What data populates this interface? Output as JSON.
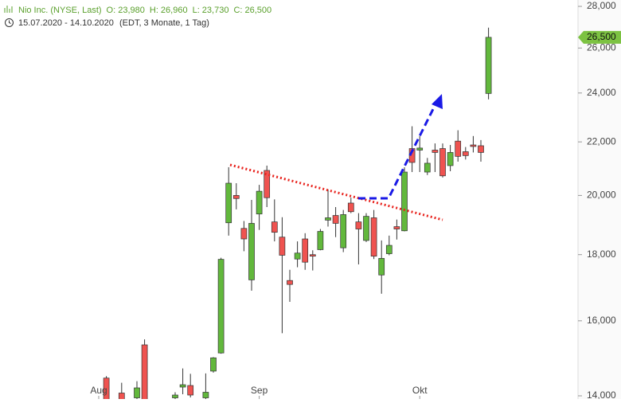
{
  "chart_data": {
    "type": "candlestick",
    "title": "Nio Inc. (NYSE, Last)",
    "ohlc_labels": [
      "O: 23,980",
      "H: 26,960",
      "L: 23,730",
      "C: 26,500"
    ],
    "date_range": "15.07.2020 - 14.10.2020",
    "subtitle": "(EDT, 3 Monate, 1 Tag)",
    "categories": [
      "Aug",
      null,
      null,
      null,
      null,
      null,
      null,
      null,
      null,
      null,
      null,
      null,
      null,
      null,
      null,
      null,
      null,
      null,
      null,
      null,
      null,
      "Sep",
      null,
      null,
      null,
      null,
      null,
      null,
      null,
      null,
      null,
      null,
      null,
      null,
      null,
      null,
      null,
      null,
      null,
      null,
      null,
      null,
      "Okt",
      null,
      null,
      null,
      null,
      null,
      null,
      null,
      null,
      null
    ],
    "open": [
      null,
      14450,
      null,
      14070,
      null,
      13950,
      15330,
      null,
      null,
      null,
      13950,
      14220,
      14260,
      null,
      13950,
      14630,
      15110,
      19050,
      20000,
      18860,
      17210,
      19350,
      20910,
      19080,
      18570,
      17190,
      17860,
      18510,
      18000,
      18160,
      19140,
      19300,
      18220,
      19730,
      19080,
      18460,
      19220,
      17360,
      18030,
      18920,
      18780,
      21740,
      21680,
      20850,
      21680,
      21740,
      21090,
      22030,
      21620,
      21880,
      21850,
      23980
    ],
    "high": [
      null,
      14500,
      null,
      14330,
      null,
      14370,
      15480,
      null,
      null,
      null,
      14090,
      14700,
      14560,
      null,
      14570,
      15000,
      17900,
      21030,
      20440,
      19110,
      19840,
      20380,
      21090,
      19860,
      19240,
      17520,
      18430,
      18700,
      18140,
      18840,
      20210,
      19590,
      19490,
      19920,
      19380,
      19380,
      19490,
      18460,
      18620,
      19160,
      21030,
      22620,
      22230,
      21380,
      21940,
      21940,
      21880,
      22460,
      21800,
      22230,
      22070,
      26960
    ],
    "low": [
      null,
      13800,
      null,
      13800,
      null,
      13850,
      13800,
      null,
      null,
      null,
      13900,
      14040,
      13960,
      null,
      13850,
      14590,
      15090,
      18620,
      19510,
      18110,
      16880,
      18810,
      19590,
      18430,
      15650,
      16550,
      17600,
      17520,
      17500,
      18140,
      18920,
      18570,
      18080,
      19380,
      17690,
      18410,
      17860,
      16790,
      17980,
      18490,
      18760,
      20850,
      20850,
      20740,
      20850,
      20650,
      20880,
      21240,
      21320,
      21590,
      21240,
      23730
    ],
    "close": [
      null,
      13900,
      null,
      13900,
      null,
      14200,
      13900,
      null,
      null,
      null,
      14020,
      14280,
      14020,
      null,
      14090,
      14980,
      17850,
      20440,
      19890,
      18510,
      19030,
      20150,
      19920,
      18730,
      17980,
      17070,
      18050,
      17760,
      17950,
      18760,
      19220,
      19030,
      19330,
      19430,
      18840,
      19270,
      17950,
      17880,
      18300,
      18840,
      20850,
      21210,
      21760,
      21180,
      21590,
      20710,
      21590,
      21440,
      21470,
      21820,
      21590,
      26500
    ],
    "up_color": "#62b83c",
    "down_color": "#ef5350",
    "ylim": [
      13921,
      28320
    ],
    "log_scale": true,
    "yticks": [
      {
        "value": 14000,
        "label": "14,000"
      },
      {
        "value": 16000,
        "label": "16,000"
      },
      {
        "value": 18000,
        "label": "18,000"
      },
      {
        "value": 20000,
        "label": "20,000"
      },
      {
        "value": 22000,
        "label": "22,000"
      },
      {
        "value": 24000,
        "label": "24,000"
      },
      {
        "value": 26000,
        "label": "26,000"
      },
      {
        "value": 28000,
        "label": "28,000"
      }
    ],
    "last_price": {
      "value": 26500,
      "label": "26,500"
    },
    "last_price_color": "#7cc242"
  }
}
